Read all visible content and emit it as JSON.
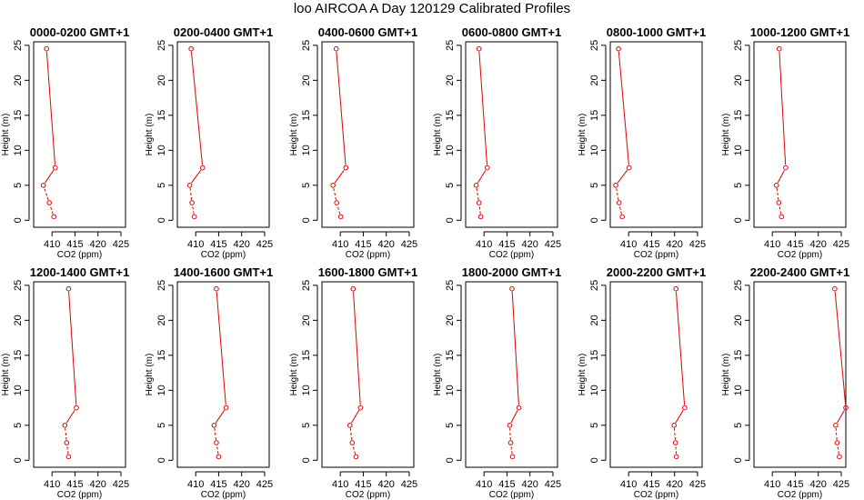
{
  "title": "loo AIRCOA A  Day 120129  Calibrated Profiles",
  "colors": {
    "series": "#e00000",
    "axis": "#000000",
    "background": "#ffffff"
  },
  "chart_data": {
    "type": "line",
    "layout": "2 rows x 6 columns small multiples",
    "xlabel": "CO2 (ppm)",
    "ylabel": "Height (m)",
    "xlim": [
      406,
      426
    ],
    "ylim": [
      -1,
      25.5
    ],
    "xticks": [
      410,
      415,
      420,
      425
    ],
    "yticks": [
      0,
      5,
      10,
      15,
      20,
      25
    ],
    "panels": [
      {
        "title": "0000-0200 GMT+1",
        "x": [
          410.4,
          409.4,
          408.1,
          410.7,
          408.8
        ],
        "y": [
          0.5,
          2.5,
          5,
          7.5,
          24.5
        ]
      },
      {
        "title": "0200-0400 GMT+1",
        "x": [
          409.7,
          409.2,
          408.7,
          411.5,
          409.0
        ],
        "y": [
          0.5,
          2.5,
          5,
          7.5,
          24.5
        ]
      },
      {
        "title": "0400-0600 GMT+1",
        "x": [
          410.1,
          409.2,
          408.4,
          411.2,
          409.1
        ],
        "y": [
          0.5,
          2.5,
          5,
          7.5,
          24.5
        ]
      },
      {
        "title": "0600-0800 GMT+1",
        "x": [
          409.3,
          408.9,
          408.3,
          410.7,
          408.9
        ],
        "y": [
          0.5,
          2.5,
          5,
          7.5,
          24.5
        ]
      },
      {
        "title": "0800-1000 GMT+1",
        "x": [
          408.6,
          407.9,
          407.2,
          410.1,
          407.8
        ],
        "y": [
          0.5,
          2.5,
          5,
          7.5,
          24.5
        ]
      },
      {
        "title": "1000-1200 GMT+1",
        "x": [
          412.0,
          411.4,
          410.9,
          412.9,
          411.5
        ],
        "y": [
          0.5,
          2.5,
          5,
          7.5,
          24.5
        ]
      },
      {
        "title": "1200-1400 GMT+1",
        "x": [
          413.6,
          413.2,
          412.8,
          415.3,
          413.6
        ],
        "y": [
          0.5,
          2.5,
          5,
          7.5,
          24.5
        ]
      },
      {
        "title": "1400-1600 GMT+1",
        "x": [
          415.0,
          414.5,
          414.0,
          416.6,
          414.5
        ],
        "y": [
          0.5,
          2.5,
          5,
          7.5,
          24.5
        ]
      },
      {
        "title": "1600-1800 GMT+1",
        "x": [
          413.4,
          412.6,
          412.1,
          414.4,
          412.8
        ],
        "y": [
          0.5,
          2.5,
          5,
          7.5,
          24.5
        ]
      },
      {
        "title": "1800-2000 GMT+1",
        "x": [
          416.2,
          415.8,
          415.6,
          417.6,
          416.1
        ],
        "y": [
          0.5,
          2.5,
          5,
          7.5,
          24.5
        ]
      },
      {
        "title": "2000-2200 GMT+1",
        "x": [
          420.4,
          420.2,
          419.9,
          422.2,
          420.3
        ],
        "y": [
          0.5,
          2.5,
          5,
          7.5,
          24.5
        ]
      },
      {
        "title": "2200-2400 GMT+1",
        "x": [
          424.6,
          424.1,
          423.8,
          426.0,
          423.6
        ],
        "y": [
          0.5,
          2.5,
          5,
          7.5,
          24.5
        ]
      }
    ]
  }
}
